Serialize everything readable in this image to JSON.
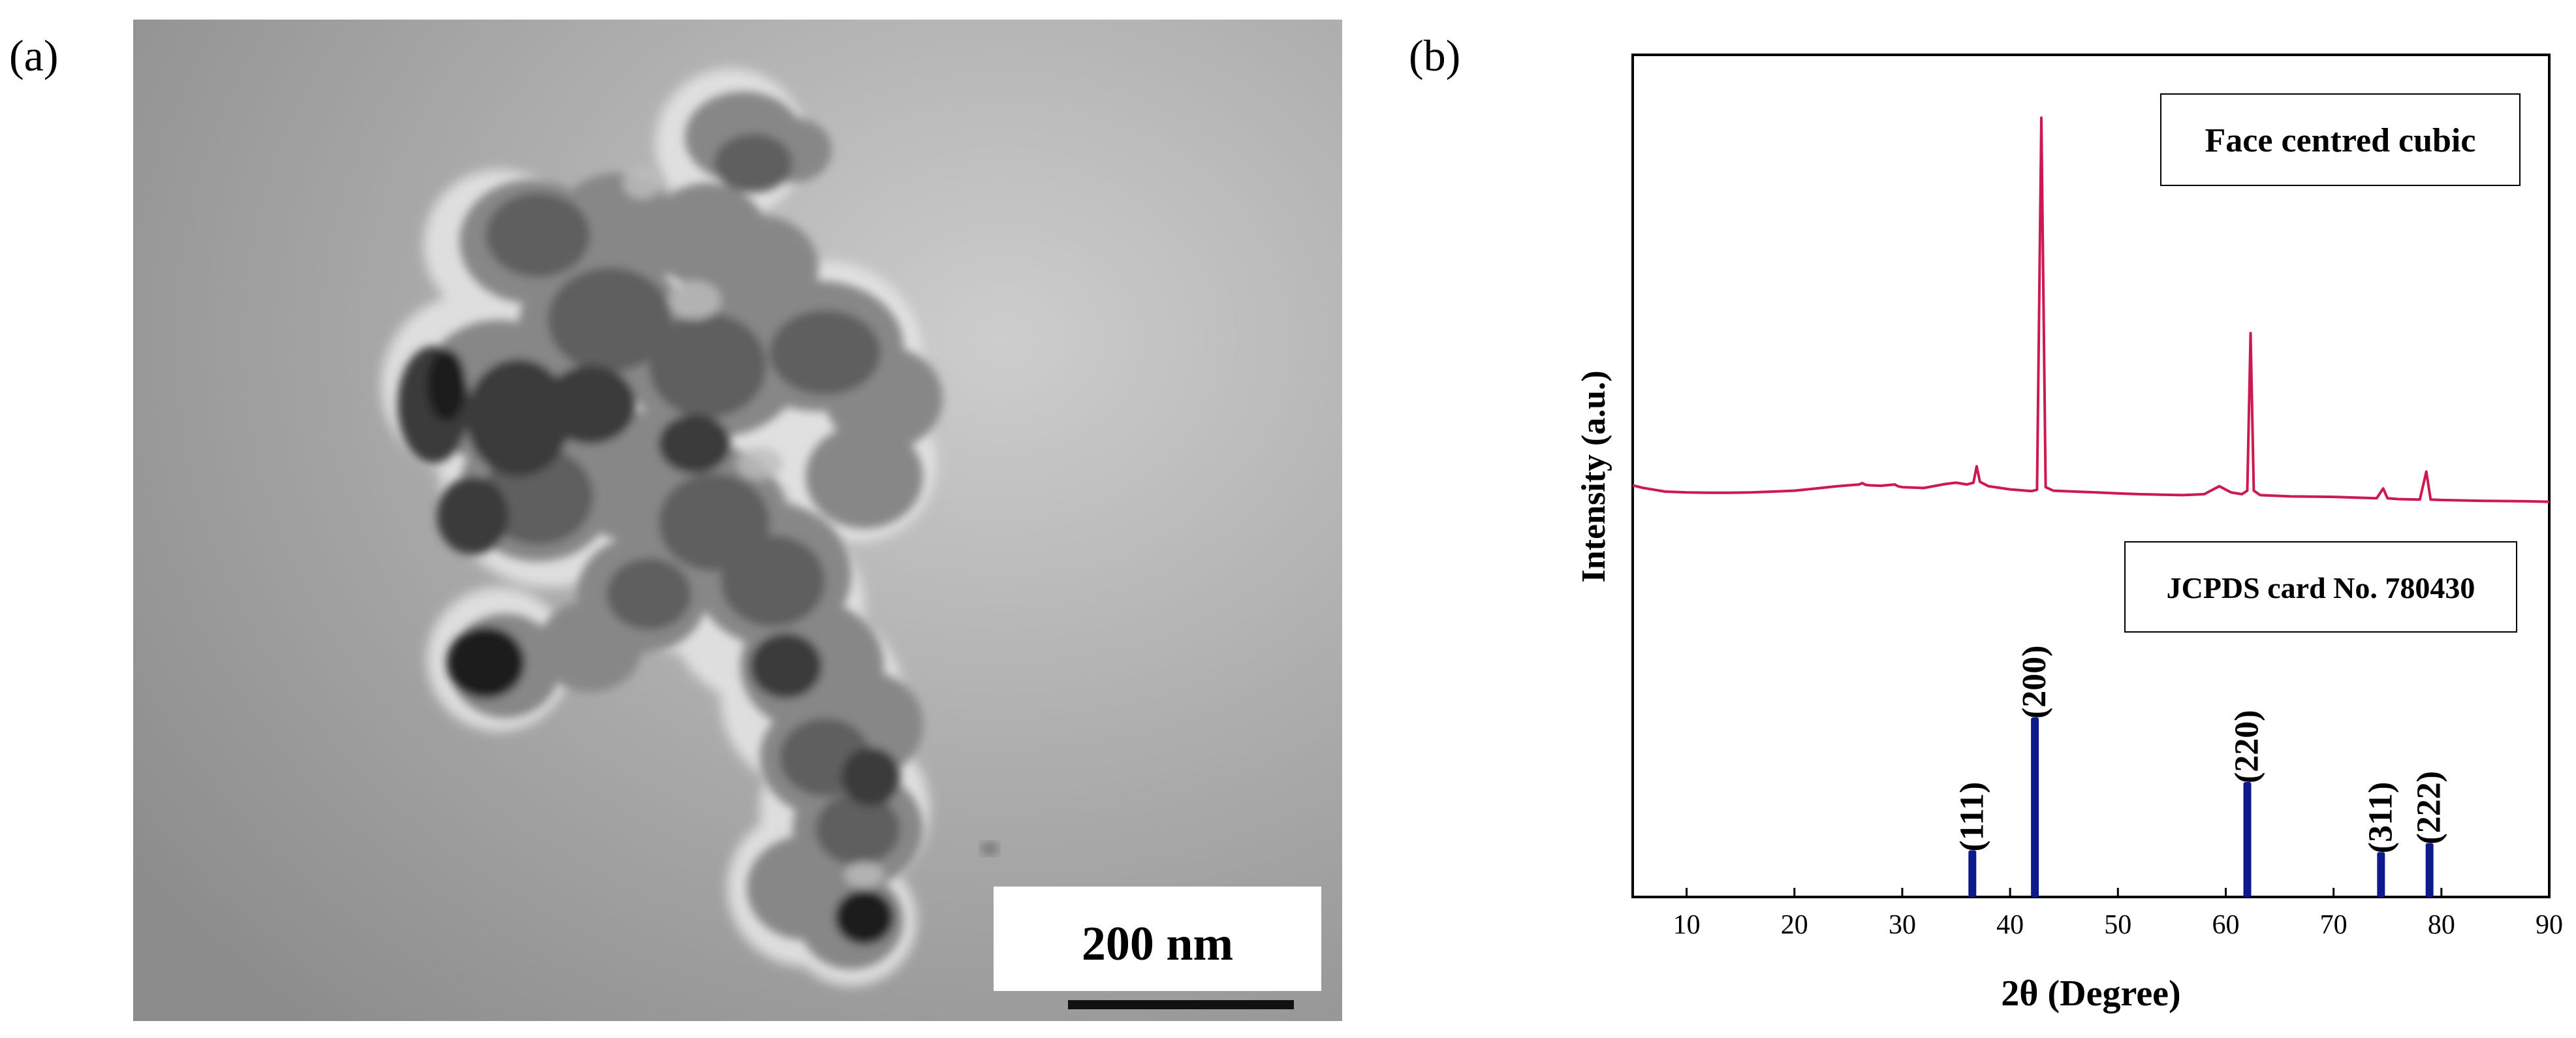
{
  "panels": {
    "a": {
      "label": "(a)"
    },
    "b": {
      "label": "(b)"
    }
  },
  "tem": {
    "scale_bar_label": "200 nm"
  },
  "chart_data": {
    "type": "line",
    "xlabel": "2θ (Degree)",
    "ylabel": "Intensity (a.u.)",
    "xlim": [
      5,
      90
    ],
    "xticks": [
      10,
      20,
      30,
      40,
      50,
      60,
      70,
      80,
      90
    ],
    "grid": false,
    "annotations": [
      "Face centred cubic",
      "JCPDS card No. 780430"
    ],
    "colors": {
      "pattern": "#cc1a50",
      "reference": "#0c1a8c"
    },
    "series": [
      {
        "type": "line",
        "x": [
          5,
          6,
          7,
          8,
          10,
          12,
          14,
          16,
          18,
          20,
          22,
          24,
          26,
          26.3,
          26.6,
          27,
          28,
          29.3,
          29.6,
          30,
          32,
          34,
          35,
          36,
          36.6,
          36.9,
          37.2,
          38,
          40,
          42,
          42.5,
          42.9,
          43.3,
          44,
          46,
          48,
          50,
          52,
          54,
          56,
          58,
          59.4,
          60.5,
          61.5,
          62.0,
          62.3,
          62.6,
          63.2,
          66,
          70,
          74,
          74.6,
          75,
          76,
          78,
          78.6,
          79,
          80,
          84,
          88,
          90
        ],
        "y": [
          0.42,
          0.36,
          0.32,
          0.28,
          0.26,
          0.255,
          0.255,
          0.26,
          0.28,
          0.3,
          0.35,
          0.4,
          0.44,
          0.47,
          0.43,
          0.42,
          0.41,
          0.44,
          0.4,
          0.38,
          0.36,
          0.45,
          0.48,
          0.44,
          0.48,
          0.85,
          0.5,
          0.4,
          0.33,
          0.29,
          0.32,
          8.7,
          0.38,
          0.3,
          0.28,
          0.26,
          0.24,
          0.22,
          0.21,
          0.2,
          0.22,
          0.4,
          0.26,
          0.22,
          0.3,
          3.85,
          0.3,
          0.2,
          0.17,
          0.16,
          0.13,
          0.35,
          0.13,
          0.11,
          0.1,
          0.73,
          0.1,
          0.09,
          0.07,
          0.06,
          0.05
        ]
      },
      {
        "type": "bar",
        "x": [
          36.5,
          42.3,
          62.0,
          74.4,
          78.9
        ],
        "values": [
          26,
          100,
          64,
          25,
          30
        ],
        "labels": [
          "(111)",
          "(200)",
          "(220)",
          "(311)",
          "(222)"
        ]
      }
    ]
  }
}
